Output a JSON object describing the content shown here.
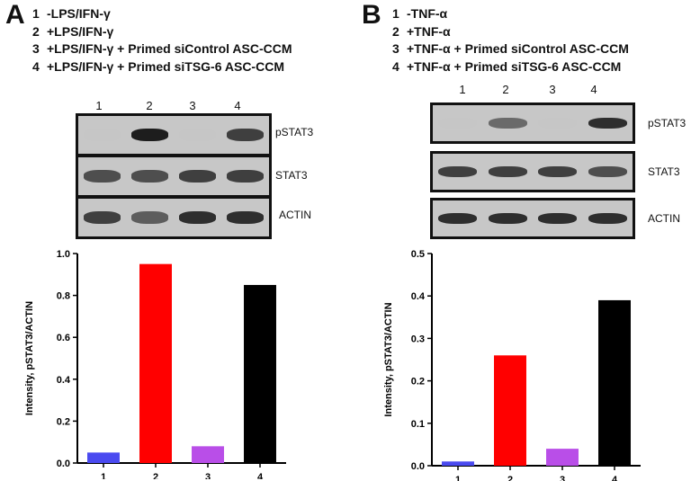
{
  "panels": [
    {
      "letter": "A",
      "legend": [
        {
          "num": "1",
          "text": "-LPS/IFN-γ"
        },
        {
          "num": "2",
          "text": "+LPS/IFN-γ"
        },
        {
          "num": "3",
          "text": "+LPS/IFN-γ + Primed siControl ASC-CCM"
        },
        {
          "num": "4",
          "text": "+LPS/IFN-γ + Primed siTSG-6 ASC-CCM"
        }
      ],
      "lanes": [
        "1",
        "2",
        "3",
        "4"
      ],
      "blots": [
        {
          "label": "pSTAT3",
          "bands": [
            0.05,
            0.95,
            0.08,
            0.85
          ]
        },
        {
          "label": "STAT3",
          "bands": [
            0.8,
            0.8,
            0.85,
            0.85
          ]
        },
        {
          "label": "ACTIN",
          "bands": [
            0.85,
            0.75,
            0.9,
            0.9
          ]
        }
      ]
    },
    {
      "letter": "B",
      "legend": [
        {
          "num": "1",
          "text": "-TNF-α"
        },
        {
          "num": "2",
          "text": "+TNF-α"
        },
        {
          "num": "3",
          "text": "+TNF-α + Primed siControl ASC-CCM"
        },
        {
          "num": "4",
          "text": "+TNF-α + Primed siTSG-6 ASC-CCM"
        }
      ],
      "lanes": [
        "1",
        "2",
        "3",
        "4"
      ],
      "blots": [
        {
          "label": "pSTAT3",
          "bands": [
            0.05,
            0.7,
            0.08,
            0.9
          ]
        },
        {
          "label": "STAT3",
          "bands": [
            0.85,
            0.85,
            0.85,
            0.8
          ]
        },
        {
          "label": "ACTIN",
          "bands": [
            0.9,
            0.9,
            0.9,
            0.9
          ]
        }
      ]
    }
  ],
  "chart_data": [
    {
      "type": "bar",
      "categories": [
        "1",
        "2",
        "3",
        "4"
      ],
      "values": [
        0.05,
        0.95,
        0.08,
        0.85
      ],
      "colors": [
        "#4a4af0",
        "#ff0000",
        "#b94ee8",
        "#000000"
      ],
      "ylabel": "Intensity, pSTAT3/ACTIN",
      "ylim": [
        0,
        1.0
      ],
      "yticks": [
        "0.0",
        "0.2",
        "0.4",
        "0.6",
        "0.8",
        "1.0"
      ],
      "grid": false
    },
    {
      "type": "bar",
      "categories": [
        "1",
        "2",
        "3",
        "4"
      ],
      "values": [
        0.01,
        0.26,
        0.04,
        0.39
      ],
      "colors": [
        "#4a4af0",
        "#ff0000",
        "#b94ee8",
        "#000000"
      ],
      "ylabel": "Intensity, pSTAT3/ACTIN",
      "ylim": [
        0,
        0.5
      ],
      "yticks": [
        "0.0",
        "0.1",
        "0.2",
        "0.3",
        "0.4",
        "0.5"
      ],
      "grid": false
    }
  ]
}
